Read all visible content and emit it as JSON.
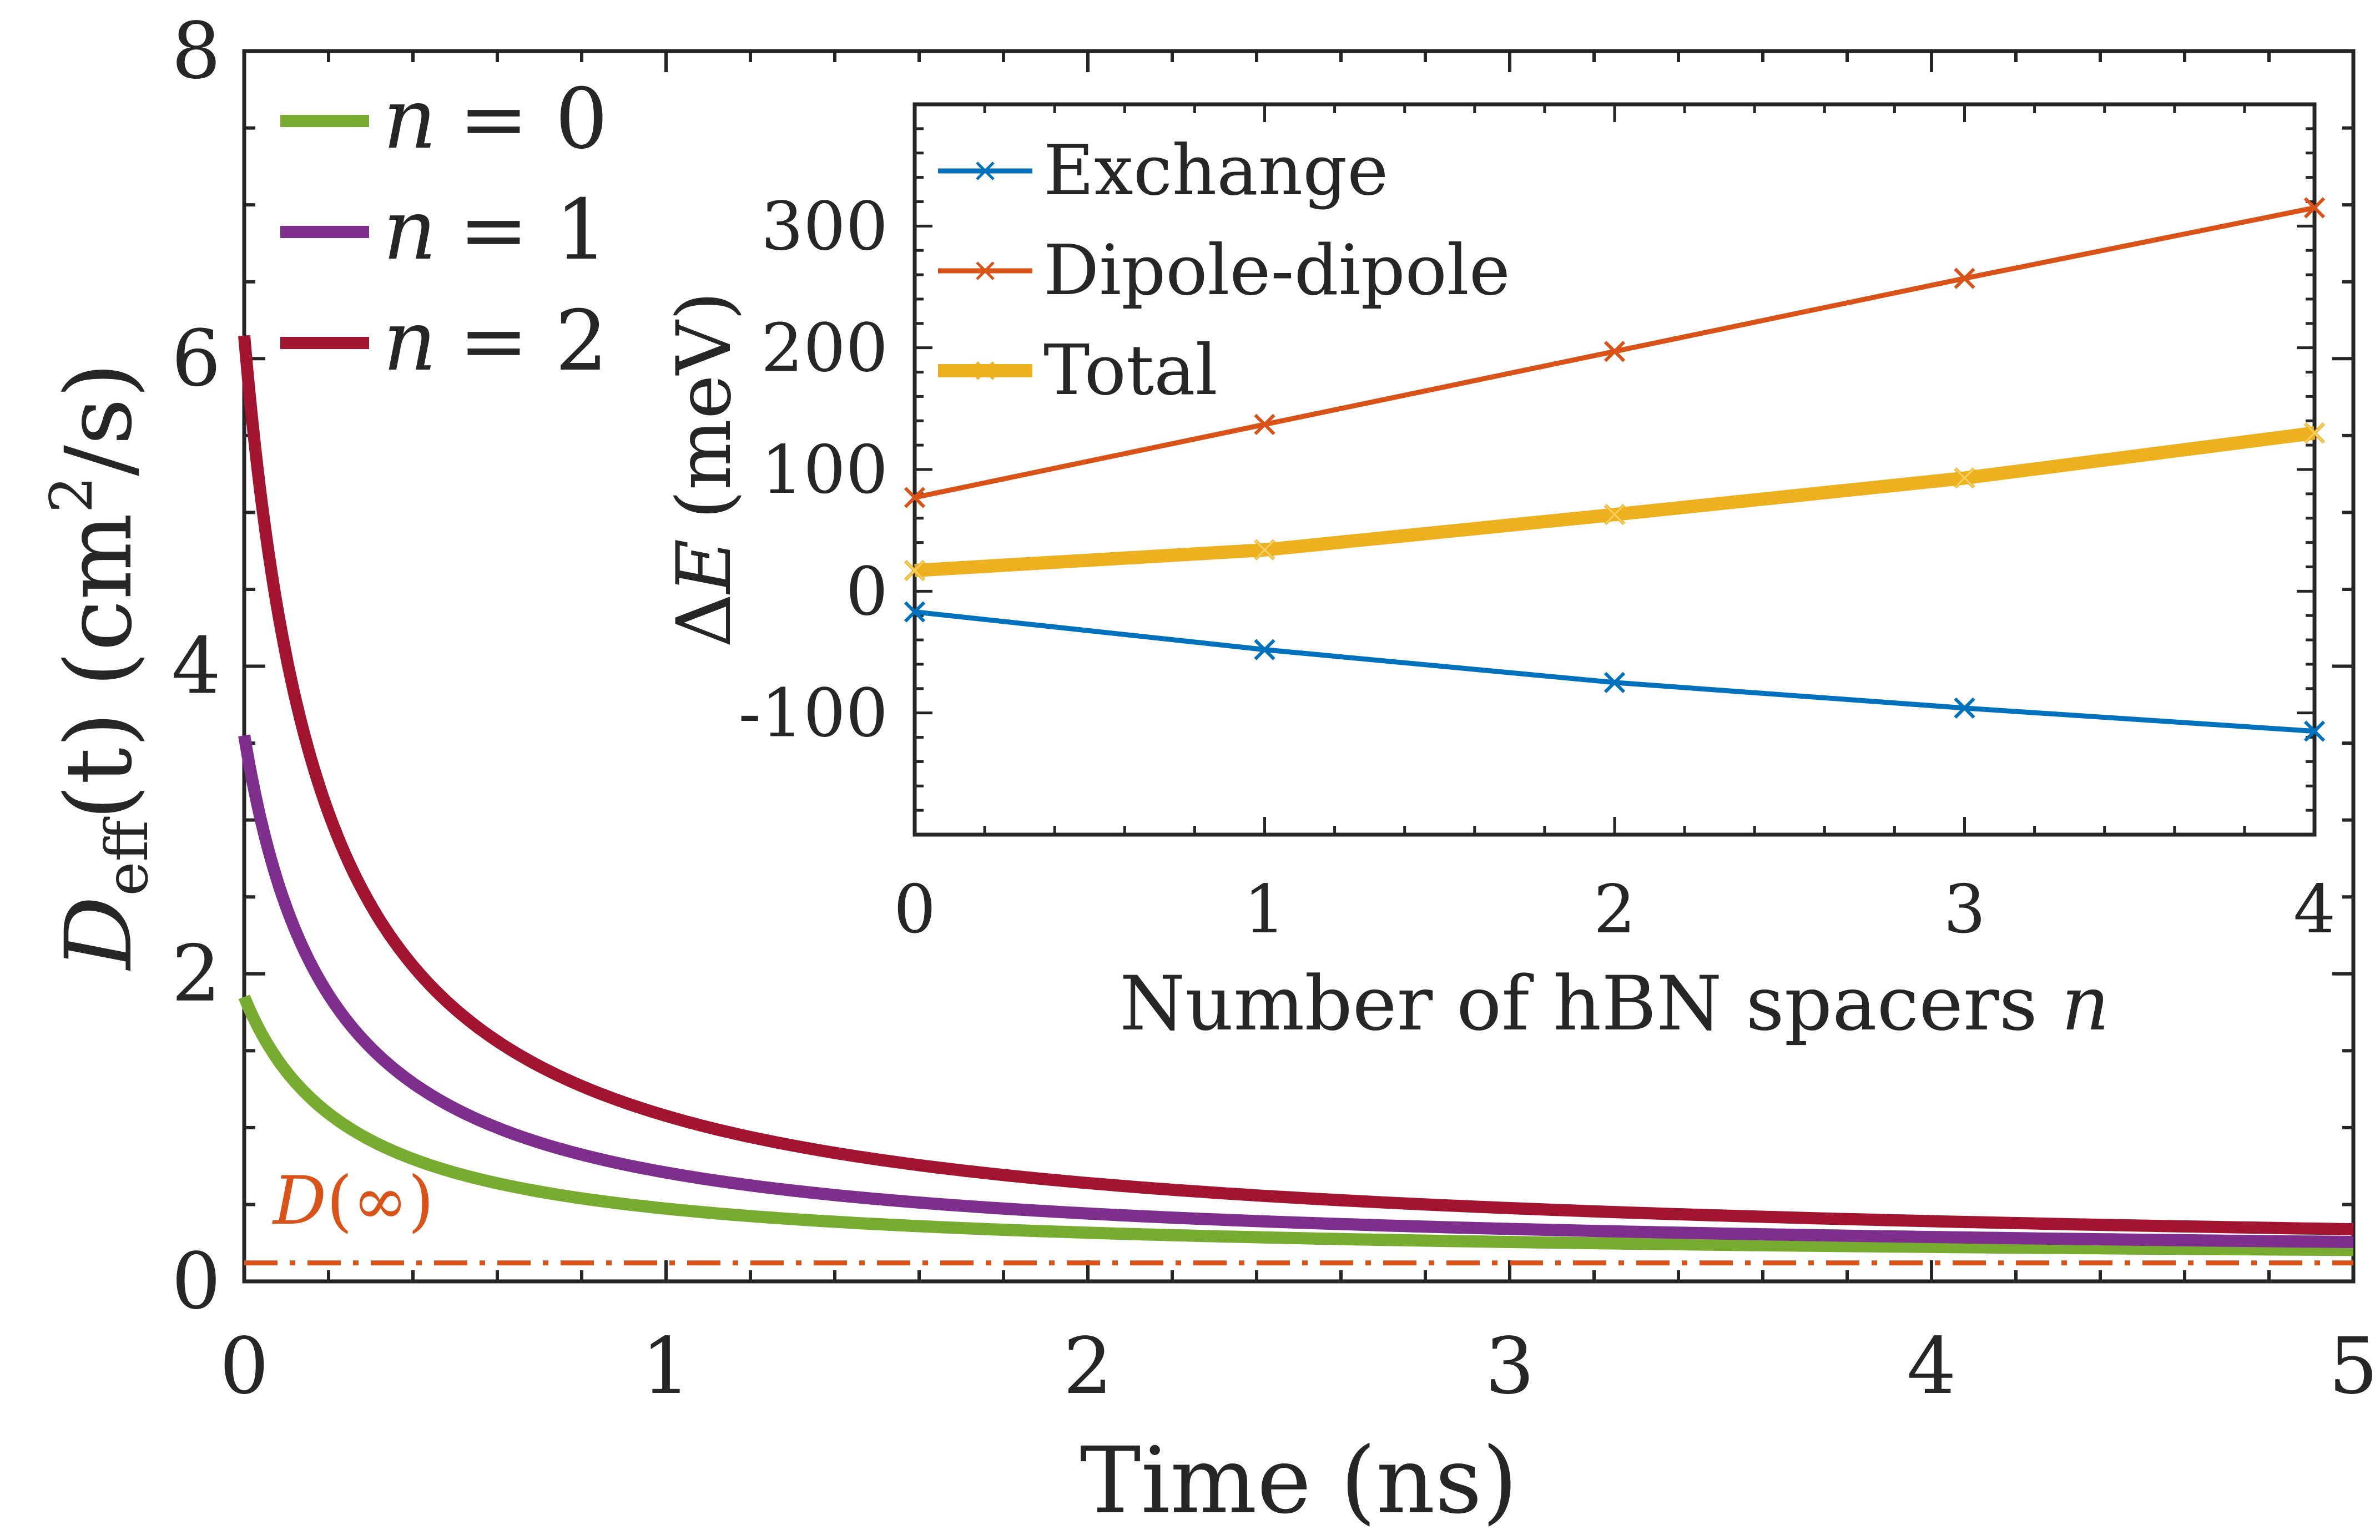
{
  "chart_data": [
    {
      "type": "line",
      "xlabel": "Time (ns)",
      "ylabel": {
        "main": "D",
        "sub": "eff",
        "arg": "(t)",
        "unit_open": "(cm",
        "unit_sup": "2",
        "unit_close": "/s)"
      },
      "xlim": [
        0,
        5
      ],
      "ylim": [
        0,
        8
      ],
      "xticks": [
        0,
        1,
        2,
        3,
        4,
        5
      ],
      "yticks": [
        0,
        2,
        4,
        6,
        8
      ],
      "series": [
        {
          "name": "n = 0",
          "legend_var": "n",
          "legend_rest": "= 0",
          "color": "#77AC30",
          "d0": 1.85,
          "dinf": 0.12,
          "alpha": 0.75
        },
        {
          "name": "n = 1",
          "legend_var": "n",
          "legend_rest": "= 1",
          "color": "#7E2F8E",
          "d0": 3.55,
          "dinf": 0.12,
          "alpha": 0.93
        },
        {
          "name": "n = 2",
          "legend_var": "n",
          "legend_rest": "= 2",
          "color": "#A2142F",
          "d0": 6.15,
          "dinf": 0.12,
          "alpha": 1.02
        }
      ],
      "reference_line": {
        "label": "D(∞)",
        "label_var": "D",
        "label_rest": "(∞)",
        "value": 0.12,
        "color": "#D95319"
      },
      "legend_location": "top-left"
    },
    {
      "type": "line",
      "xlabel": "Number of hBN spacers n",
      "xlabel_text": "Number of hBN spacers ",
      "xlabel_var": "n",
      "ylabel": "ΔE (meV)",
      "ylabel_delta": "Δ",
      "ylabel_var": "E",
      "ylabel_unit": "(meV)",
      "xlim": [
        0,
        4
      ],
      "ylim": [
        -200,
        400
      ],
      "xticks": [
        0,
        1,
        2,
        3,
        4
      ],
      "yticks": [
        -100,
        0,
        100,
        200,
        300
      ],
      "ytick_labels": [
        "-100",
        "0",
        "100",
        "200",
        "300"
      ],
      "x": [
        0,
        1,
        2,
        3,
        4
      ],
      "series": [
        {
          "name": "Exchange",
          "color": "#0072BD",
          "values": [
            -17,
            -48,
            -75,
            -96,
            -115
          ]
        },
        {
          "name": "Dipole-dipole",
          "color": "#D95319",
          "values": [
            77,
            137,
            197,
            257,
            315
          ]
        },
        {
          "name": "Total",
          "color": "#EDB120",
          "values": [
            17,
            34,
            63,
            93,
            130
          ]
        }
      ],
      "legend_location": "top-left"
    }
  ]
}
